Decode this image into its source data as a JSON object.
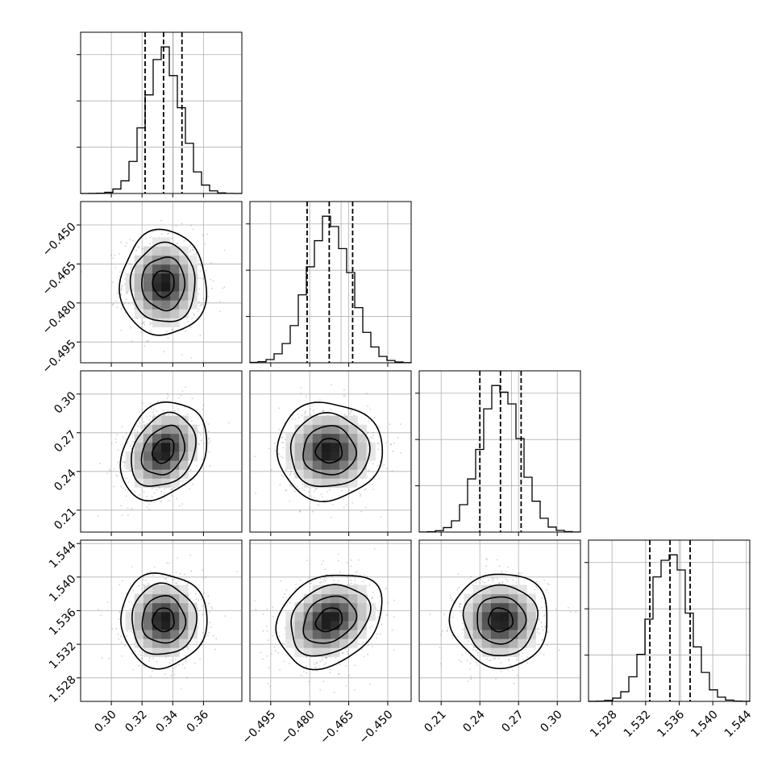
{
  "chart_data": {
    "type": "corner",
    "parameters": [
      "",
      "",
      "",
      ""
    ],
    "means": [
      0.334,
      -0.4725,
      0.256,
      1.5349
    ],
    "sigmas": [
      0.0115,
      0.0083,
      0.0155,
      0.0023
    ],
    "correlations": [
      [
        1.0,
        0.0,
        0.25,
        0.0
      ],
      [
        0.0,
        1.0,
        0.0,
        0.25
      ],
      [
        0.25,
        0.0,
        1.0,
        0.0
      ],
      [
        0.0,
        0.25,
        0.0,
        1.0
      ]
    ],
    "quantiles": [
      [
        0.322,
        0.334,
        0.346
      ],
      [
        -0.481,
        -0.4725,
        -0.4635
      ],
      [
        0.24,
        0.256,
        0.272
      ],
      [
        1.5325,
        1.5349,
        1.5373
      ]
    ],
    "axis_ranges": [
      [
        0.28,
        0.385
      ],
      [
        -0.503,
        -0.441
      ],
      [
        0.193,
        0.318
      ],
      [
        1.5252,
        1.5444
      ]
    ],
    "tick_values": [
      [
        0.3,
        0.32,
        0.34,
        0.36
      ],
      [
        -0.495,
        -0.48,
        -0.465,
        -0.45
      ],
      [
        0.21,
        0.24,
        0.27,
        0.3
      ],
      [
        1.528,
        1.532,
        1.536,
        1.54,
        1.544
      ]
    ],
    "tick_labels": [
      [
        "0.30",
        "0.32",
        "0.34",
        "0.36"
      ],
      [
        "−0.495",
        "−0.480",
        "−0.465",
        "−0.450"
      ],
      [
        "0.21",
        "0.24",
        "0.27",
        "0.30"
      ],
      [
        "1.528",
        "1.532",
        "1.536",
        "1.540",
        "1.544"
      ]
    ],
    "histogram_bins": 20,
    "contour_levels_sigma": [
      0.5,
      1.0,
      1.5,
      2.0
    ],
    "grid": true
  }
}
